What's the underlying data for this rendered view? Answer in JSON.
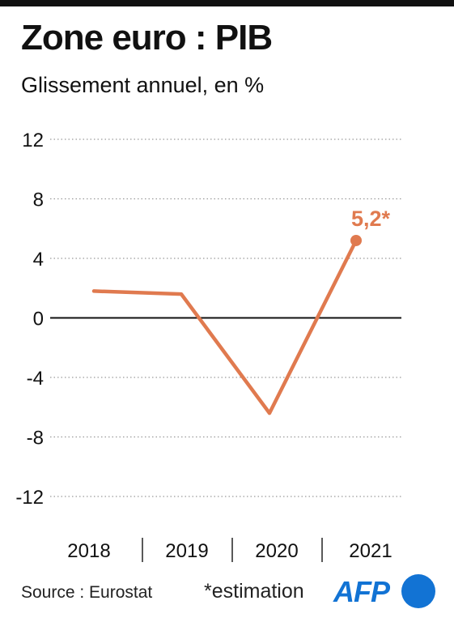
{
  "header": {
    "title": "Zone euro : PIB",
    "subtitle": "Glissement annuel, en %"
  },
  "footer": {
    "source": "Source : Eurostat",
    "note": "*estimation",
    "logo_text": "AFP"
  },
  "colors": {
    "line": "#e07a4f",
    "gridline": "#9a9a9a",
    "axis": "#111111",
    "brand": "#1273d4"
  },
  "chart_data": {
    "type": "line",
    "title": "Zone euro : PIB",
    "subtitle": "Glissement annuel, en %",
    "categories": [
      "2018",
      "2019",
      "2020",
      "2021"
    ],
    "series": [
      {
        "values": [
          1.8,
          1.6,
          -6.4,
          5.2
        ]
      }
    ],
    "annotations": [
      {
        "category": "2021",
        "value": 5.2,
        "text": "5,2*"
      }
    ],
    "yticks": [
      "12",
      "8",
      "4",
      "0",
      "-4",
      "-8",
      "-12"
    ],
    "ytick_values": [
      12,
      8,
      4,
      0,
      -4,
      -8,
      -12
    ],
    "ylim": [
      -12,
      12
    ],
    "grid": true,
    "legend": "none"
  }
}
